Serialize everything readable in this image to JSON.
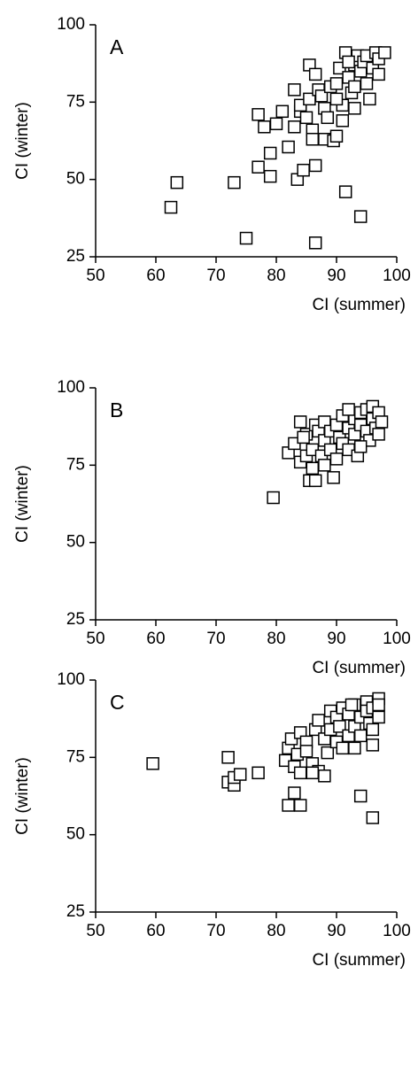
{
  "chart_data": [
    {
      "type": "scatter",
      "annotation": "A",
      "xlabel": "CI (summer)",
      "ylabel": "CI (winter)",
      "color": "#000000",
      "xlim": [
        50,
        100
      ],
      "ylim": [
        25,
        100
      ],
      "xticks": [
        50,
        60,
        70,
        80,
        90,
        100
      ],
      "yticks": [
        25,
        50,
        75,
        100
      ],
      "x": [
        62.5,
        63.5,
        73,
        75,
        86.5,
        91.5,
        94,
        77,
        79,
        79,
        82,
        83.5,
        84.5,
        86.5,
        77,
        78,
        80,
        81,
        83,
        83,
        84,
        84,
        85,
        85.5,
        85.5,
        86,
        86,
        86.5,
        87,
        87.5,
        88,
        88,
        88.5,
        89,
        89.5,
        90,
        90,
        90.5,
        91,
        91,
        91.5,
        92,
        92.5,
        93,
        93,
        93.5,
        94,
        94.5,
        95,
        95,
        95.5,
        96,
        96.5,
        97,
        97,
        98,
        93,
        92,
        90
      ],
      "y": [
        41,
        49,
        49,
        31,
        29.5,
        46,
        38,
        54,
        51,
        58.5,
        60.5,
        50,
        53,
        54.5,
        71,
        67,
        68,
        72,
        79,
        67,
        72,
        74,
        70,
        87,
        76,
        66,
        63,
        84,
        79,
        77,
        73,
        63,
        70,
        80,
        62.5,
        81,
        64,
        86,
        74,
        69,
        91,
        83,
        78,
        87,
        73,
        90,
        85,
        88,
        81,
        90,
        76,
        86,
        91,
        89,
        84,
        91,
        80,
        88,
        76
      ]
    },
    {
      "type": "scatter",
      "annotation": "B",
      "xlabel": "CI (summer)",
      "ylabel": "CI (winter)",
      "color": "#000000",
      "xlim": [
        50,
        100
      ],
      "ylim": [
        25,
        100
      ],
      "xticks": [
        50,
        60,
        70,
        80,
        90,
        100
      ],
      "yticks": [
        25,
        50,
        75,
        100
      ],
      "x": [
        79.5,
        85.5,
        86.5,
        89.5,
        82,
        83,
        84,
        84,
        85,
        85,
        86,
        86,
        86.5,
        87,
        87.5,
        88,
        88,
        89,
        89,
        90,
        90,
        90.5,
        91,
        91,
        92,
        92,
        93,
        93,
        93.5,
        94,
        94,
        95,
        95,
        95.5,
        96,
        96,
        96.5,
        97,
        97,
        97.5,
        84.5,
        88,
        92,
        94
      ],
      "y": [
        64.5,
        70,
        70,
        71,
        79,
        82,
        76,
        89,
        85,
        78,
        80,
        74,
        88,
        86,
        78,
        83,
        89,
        80,
        86,
        88,
        77,
        84,
        91,
        82,
        87,
        80,
        90,
        85,
        78,
        92,
        88,
        86,
        93,
        83,
        90,
        94,
        87,
        92,
        85,
        89,
        84,
        75,
        93,
        81
      ]
    },
    {
      "type": "scatter",
      "annotation": "C",
      "xlabel": "CI (summer)",
      "ylabel": "CI (winter)",
      "color": "#000000",
      "xlim": [
        50,
        100
      ],
      "ylim": [
        25,
        100
      ],
      "xticks": [
        50,
        60,
        70,
        80,
        90,
        100
      ],
      "yticks": [
        25,
        50,
        75,
        100
      ],
      "x": [
        59.5,
        72,
        72,
        73,
        73,
        74,
        77,
        82,
        83,
        84,
        94,
        96,
        81.5,
        82,
        82.5,
        83,
        83.5,
        84,
        85,
        85,
        86,
        86.5,
        87,
        87,
        88,
        88,
        88.5,
        89,
        89,
        90,
        90,
        90.5,
        91,
        91,
        92,
        92,
        93,
        93,
        93,
        94,
        94,
        95,
        95,
        95.5,
        96,
        96,
        96,
        97,
        97,
        97,
        84,
        86,
        92.5
      ],
      "y": [
        73,
        75,
        67,
        66,
        68.5,
        69.5,
        70,
        59.5,
        63.5,
        59.5,
        62.5,
        55.5,
        74,
        78,
        81,
        72,
        76,
        83,
        80,
        77,
        73,
        84,
        87,
        70.5,
        69,
        81,
        76.5,
        90,
        84,
        88,
        80,
        85,
        91,
        78,
        82,
        89,
        92,
        85,
        78,
        88,
        82,
        93,
        90,
        86,
        79,
        84,
        91,
        94,
        88,
        92,
        70,
        70,
        92
      ]
    }
  ]
}
